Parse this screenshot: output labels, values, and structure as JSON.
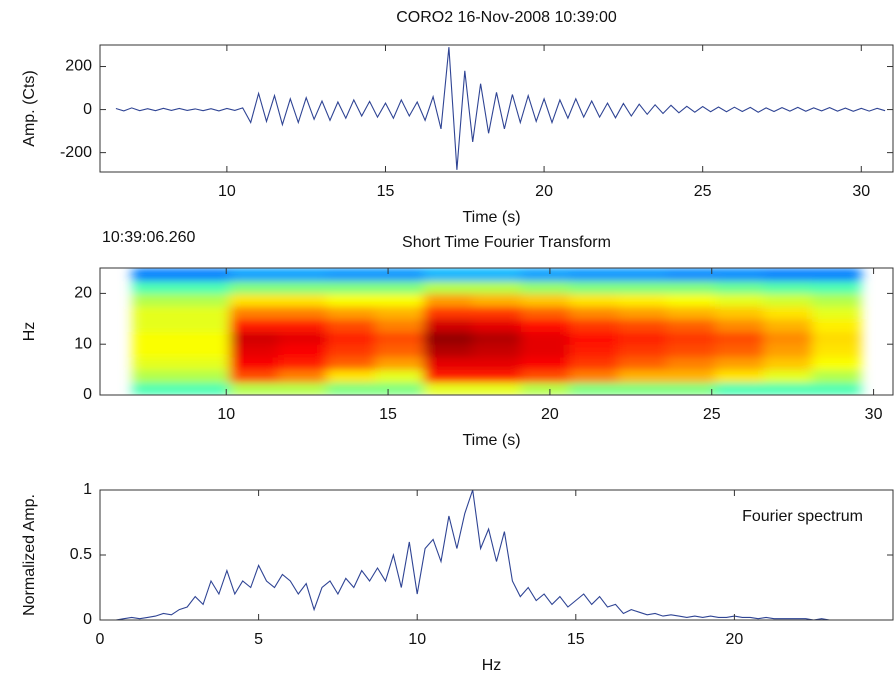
{
  "chart_data": [
    {
      "type": "line",
      "title": "CORO2 16-Nov-2008 10:39:00",
      "xlabel": "Time (s)",
      "ylabel": "Amp. (Cts)",
      "color": "#2f4494",
      "xlim": [
        6,
        31
      ],
      "ylim": [
        -290,
        300
      ],
      "xticks": [
        10,
        15,
        20,
        25,
        30
      ],
      "yticks": [
        -200,
        0,
        200
      ],
      "x": [
        6.5,
        6.75,
        7,
        7.25,
        7.5,
        7.75,
        8,
        8.25,
        8.5,
        8.75,
        9,
        9.25,
        9.5,
        9.75,
        10,
        10.25,
        10.5,
        10.75,
        11,
        11.25,
        11.5,
        11.75,
        12,
        12.25,
        12.5,
        12.75,
        13,
        13.25,
        13.5,
        13.75,
        14,
        14.25,
        14.5,
        14.75,
        15,
        15.25,
        15.5,
        15.75,
        16,
        16.25,
        16.5,
        16.75,
        17,
        17.25,
        17.5,
        17.75,
        18,
        18.25,
        18.5,
        18.75,
        19,
        19.25,
        19.5,
        19.75,
        20,
        20.25,
        20.5,
        20.75,
        21,
        21.25,
        21.5,
        21.75,
        22,
        22.25,
        22.5,
        22.75,
        23,
        23.25,
        23.5,
        23.75,
        24,
        24.25,
        24.5,
        24.75,
        25,
        25.25,
        25.5,
        25.75,
        26,
        26.25,
        26.5,
        26.75,
        27,
        27.25,
        27.5,
        27.75,
        28,
        28.25,
        28.5,
        28.75,
        29,
        29.25,
        29.5,
        29.75,
        30,
        30.25,
        30.5,
        30.75
      ],
      "values": [
        5,
        -6,
        8,
        -5,
        4,
        -5,
        6,
        -4,
        5,
        -4,
        3,
        -5,
        4,
        -6,
        5,
        -4,
        8,
        -60,
        75,
        -55,
        65,
        -70,
        50,
        -60,
        55,
        -45,
        40,
        -50,
        35,
        -40,
        45,
        -30,
        38,
        -35,
        30,
        -40,
        45,
        -30,
        35,
        -50,
        60,
        -90,
        290,
        -280,
        180,
        -150,
        120,
        -110,
        80,
        -90,
        70,
        -60,
        65,
        -55,
        50,
        -60,
        45,
        -40,
        50,
        -35,
        40,
        -35,
        30,
        -38,
        28,
        -30,
        25,
        -22,
        22,
        -18,
        20,
        -15,
        15,
        -12,
        14,
        -10,
        12,
        -10,
        11,
        -9,
        10,
        -12,
        8,
        -9,
        9,
        -7,
        10,
        -8,
        8,
        -6,
        9,
        -7,
        7,
        -8,
        6,
        -7,
        6,
        -5
      ]
    },
    {
      "type": "heatmap",
      "title": "Short Time Fourier Transform",
      "annotation": "10:39:06.260",
      "xlabel": "Time (s)",
      "ylabel": "Hz",
      "colormap": "jet",
      "xlim": [
        6.1,
        30.6
      ],
      "ylim": [
        0,
        25
      ],
      "xticks": [
        10,
        15,
        20,
        25,
        30
      ],
      "yticks": [
        0,
        10,
        20
      ],
      "zlim": [
        0,
        1
      ],
      "xbins": [
        7.1,
        8.6,
        10.1,
        11.6,
        13.1,
        14.6,
        16.1,
        17.6,
        19.1,
        20.6,
        22.1,
        23.6,
        25.1,
        26.6,
        28.1,
        29.6
      ],
      "ybins": [
        0,
        2.5,
        5,
        7.5,
        10,
        12.5,
        15,
        17.5,
        20,
        22.5,
        25
      ],
      "z": [
        [
          0.45,
          0.45,
          0.55,
          0.55,
          0.5,
          0.5,
          0.6,
          0.6,
          0.55,
          0.5,
          0.5,
          0.5,
          0.45,
          0.45,
          0.45
        ],
        [
          0.55,
          0.55,
          0.8,
          0.75,
          0.65,
          0.6,
          0.85,
          0.85,
          0.8,
          0.75,
          0.7,
          0.7,
          0.65,
          0.6,
          0.55
        ],
        [
          0.6,
          0.6,
          0.88,
          0.85,
          0.78,
          0.72,
          0.9,
          0.9,
          0.88,
          0.82,
          0.78,
          0.75,
          0.72,
          0.68,
          0.62
        ],
        [
          0.62,
          0.62,
          0.9,
          0.88,
          0.82,
          0.78,
          0.95,
          0.93,
          0.9,
          0.85,
          0.82,
          0.8,
          0.78,
          0.72,
          0.65
        ],
        [
          0.62,
          0.62,
          0.92,
          0.9,
          0.84,
          0.8,
          0.98,
          0.95,
          0.9,
          0.86,
          0.84,
          0.82,
          0.8,
          0.74,
          0.66
        ],
        [
          0.6,
          0.6,
          0.85,
          0.85,
          0.8,
          0.75,
          0.92,
          0.9,
          0.86,
          0.82,
          0.8,
          0.78,
          0.74,
          0.7,
          0.64
        ],
        [
          0.6,
          0.6,
          0.75,
          0.75,
          0.72,
          0.7,
          0.82,
          0.82,
          0.78,
          0.74,
          0.72,
          0.7,
          0.68,
          0.65,
          0.6
        ],
        [
          0.55,
          0.55,
          0.65,
          0.65,
          0.62,
          0.62,
          0.72,
          0.7,
          0.68,
          0.65,
          0.64,
          0.62,
          0.6,
          0.58,
          0.55
        ],
        [
          0.45,
          0.45,
          0.5,
          0.5,
          0.5,
          0.5,
          0.55,
          0.55,
          0.52,
          0.5,
          0.5,
          0.5,
          0.48,
          0.46,
          0.45
        ],
        [
          0.25,
          0.25,
          0.28,
          0.28,
          0.27,
          0.27,
          0.3,
          0.3,
          0.28,
          0.27,
          0.27,
          0.26,
          0.26,
          0.25,
          0.25
        ]
      ]
    },
    {
      "type": "line",
      "annotation": "Fourier spectrum",
      "xlabel": "Hz",
      "ylabel": "Normalized Amp.",
      "color": "#2f4494",
      "xlim": [
        0,
        25
      ],
      "ylim": [
        0,
        1
      ],
      "xticks": [
        0,
        5,
        10,
        15,
        20
      ],
      "yticks": [
        0,
        0.5,
        1
      ],
      "x": [
        0,
        0.25,
        0.5,
        0.75,
        1,
        1.25,
        1.5,
        1.75,
        2,
        2.25,
        2.5,
        2.75,
        3,
        3.25,
        3.5,
        3.75,
        4,
        4.25,
        4.5,
        4.75,
        5,
        5.25,
        5.5,
        5.75,
        6,
        6.25,
        6.5,
        6.75,
        7,
        7.25,
        7.5,
        7.75,
        8,
        8.25,
        8.5,
        8.75,
        9,
        9.25,
        9.5,
        9.75,
        10,
        10.25,
        10.5,
        10.75,
        11,
        11.25,
        11.5,
        11.75,
        12,
        12.25,
        12.5,
        12.75,
        13,
        13.25,
        13.5,
        13.75,
        14,
        14.25,
        14.5,
        14.75,
        15,
        15.25,
        15.5,
        15.75,
        16,
        16.25,
        16.5,
        16.75,
        17,
        17.25,
        17.5,
        17.75,
        18,
        18.25,
        18.5,
        18.75,
        19,
        19.25,
        19.5,
        19.75,
        20,
        20.25,
        20.5,
        20.75,
        21,
        21.25,
        21.5,
        21.75,
        22,
        22.25,
        22.5,
        22.75,
        23,
        23.25,
        23.5,
        23.75,
        24
      ],
      "values": [
        0,
        0,
        0,
        0.01,
        0.02,
        0.01,
        0.02,
        0.03,
        0.05,
        0.04,
        0.08,
        0.1,
        0.18,
        0.12,
        0.3,
        0.2,
        0.38,
        0.2,
        0.3,
        0.25,
        0.42,
        0.3,
        0.25,
        0.35,
        0.3,
        0.2,
        0.28,
        0.08,
        0.25,
        0.3,
        0.2,
        0.32,
        0.25,
        0.38,
        0.3,
        0.4,
        0.3,
        0.5,
        0.25,
        0.6,
        0.2,
        0.55,
        0.62,
        0.45,
        0.8,
        0.55,
        0.82,
        1,
        0.55,
        0.7,
        0.45,
        0.68,
        0.3,
        0.18,
        0.25,
        0.15,
        0.2,
        0.12,
        0.18,
        0.1,
        0.15,
        0.2,
        0.12,
        0.18,
        0.1,
        0.12,
        0.05,
        0.08,
        0.06,
        0.04,
        0.05,
        0.03,
        0.04,
        0.03,
        0.02,
        0.03,
        0.02,
        0.03,
        0.02,
        0.02,
        0.03,
        0.02,
        0.02,
        0.01,
        0.02,
        0.01,
        0.01,
        0.01,
        0.01,
        0.01,
        0,
        0.01,
        0,
        0,
        0,
        0,
        0
      ]
    }
  ]
}
